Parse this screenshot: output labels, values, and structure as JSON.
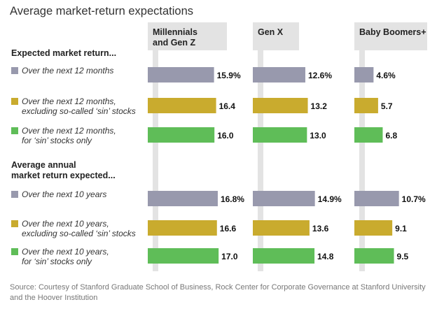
{
  "title": "Average market-return expectations",
  "source": "Source: Courtesy of Stanford Graduate School of Business, Rock Center for Corporate Governance at Stanford University and the Hoover Institution",
  "colors": {
    "all_stocks": "#9899ad",
    "excluding_sin": "#c9ab2e",
    "sin_only": "#5fbd58",
    "column_rail": "#e3e3e3",
    "header_bg": "#e3e3e3"
  },
  "chart_data": {
    "type": "bar",
    "orientation": "horizontal",
    "columns": [
      {
        "name": "Millennials and Gen Z",
        "label_lines": [
          "Millennials",
          "and Gen Z"
        ]
      },
      {
        "name": "Gen X",
        "label_lines": [
          "Gen X"
        ]
      },
      {
        "name": "Baby Boomers+",
        "label_lines": [
          "Baby Boomers+"
        ]
      }
    ],
    "sections": [
      {
        "heading_lines": [
          "Expected market return..."
        ],
        "rows": [
          {
            "label_lines": [
              "Over the next 12 months"
            ],
            "category": "all_stocks",
            "values": [
              15.9,
              12.6,
              4.6
            ],
            "labels": [
              "15.9%",
              "12.6%",
              "4.6%"
            ]
          },
          {
            "label_lines": [
              "Over the next 12 months,",
              "excluding so-called ‘sin’ stocks"
            ],
            "category": "excluding_sin",
            "values": [
              16.4,
              13.2,
              5.7
            ],
            "labels": [
              "16.4",
              "13.2",
              "5.7"
            ]
          },
          {
            "label_lines": [
              "Over the next 12 months,",
              "for ‘sin’ stocks only"
            ],
            "category": "sin_only",
            "values": [
              16.0,
              13.0,
              6.8
            ],
            "labels": [
              "16.0",
              "13.0",
              "6.8"
            ]
          }
        ]
      },
      {
        "heading_lines": [
          "Average annual",
          "market return expected..."
        ],
        "rows": [
          {
            "label_lines": [
              "Over the next 10 years"
            ],
            "category": "all_stocks",
            "values": [
              16.8,
              14.9,
              10.7
            ],
            "labels": [
              "16.8%",
              "14.9%",
              "10.7%"
            ]
          },
          {
            "label_lines": [
              "Over the next 10 years,",
              "excluding so-called ‘sin’ stocks"
            ],
            "category": "excluding_sin",
            "values": [
              16.6,
              13.6,
              9.1
            ],
            "labels": [
              "16.6",
              "13.6",
              "9.1"
            ]
          },
          {
            "label_lines": [
              "Over the next 10 years,",
              "for ‘sin’ stocks only"
            ],
            "category": "sin_only",
            "values": [
              17.0,
              14.8,
              9.5
            ],
            "labels": [
              "17.0",
              "14.8",
              "9.5"
            ]
          }
        ]
      }
    ]
  }
}
